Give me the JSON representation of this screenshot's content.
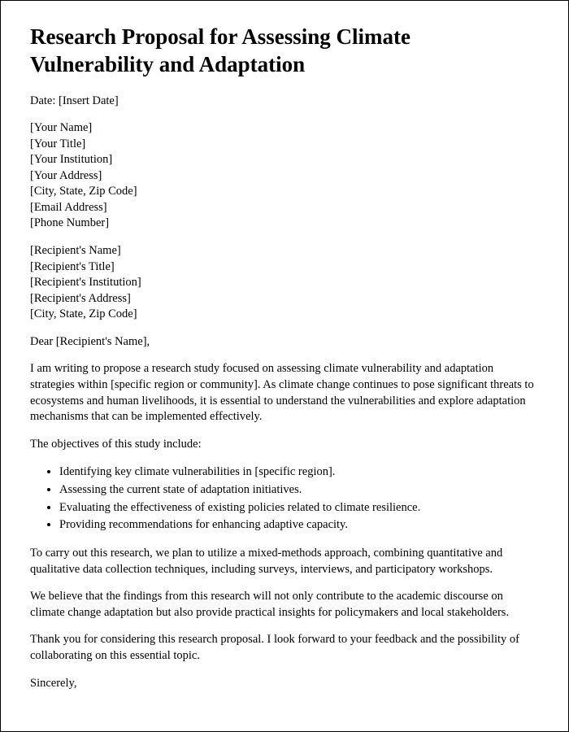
{
  "title": "Research Proposal for Assessing Climate Vulnerability and Adaptation",
  "date_line": "Date: [Insert Date]",
  "sender": {
    "name": "[Your Name]",
    "title": "[Your Title]",
    "institution": "[Your Institution]",
    "address": "[Your Address]",
    "city_state_zip": "[City, State, Zip Code]",
    "email": "[Email Address]",
    "phone": "[Phone Number]"
  },
  "recipient": {
    "name": "[Recipient's Name]",
    "title": "[Recipient's Title]",
    "institution": "[Recipient's Institution]",
    "address": "[Recipient's Address]",
    "city_state_zip": "[City, State, Zip Code]"
  },
  "salutation": "Dear [Recipient's Name],",
  "intro_paragraph": "I am writing to propose a research study focused on assessing climate vulnerability and adaptation strategies within [specific region or community]. As climate change continues to pose significant threats to ecosystems and human livelihoods, it is essential to understand the vulnerabilities and explore adaptation mechanisms that can be implemented effectively.",
  "objectives_lead": "The objectives of this study include:",
  "objectives": {
    "0": "Identifying key climate vulnerabilities in [specific region].",
    "1": "Assessing the current state of adaptation initiatives.",
    "2": "Evaluating the effectiveness of existing policies related to climate resilience.",
    "3": "Providing recommendations for enhancing adaptive capacity."
  },
  "methods_paragraph": "To carry out this research, we plan to utilize a mixed-methods approach, combining quantitative and qualitative data collection techniques, including surveys, interviews, and participatory workshops.",
  "impact_paragraph": "We believe that the findings from this research will not only contribute to the academic discourse on climate change adaptation but also provide practical insights for policymakers and local stakeholders.",
  "closing_paragraph": "Thank you for considering this research proposal. I look forward to your feedback and the possibility of collaborating on this essential topic.",
  "signoff": "Sincerely,"
}
